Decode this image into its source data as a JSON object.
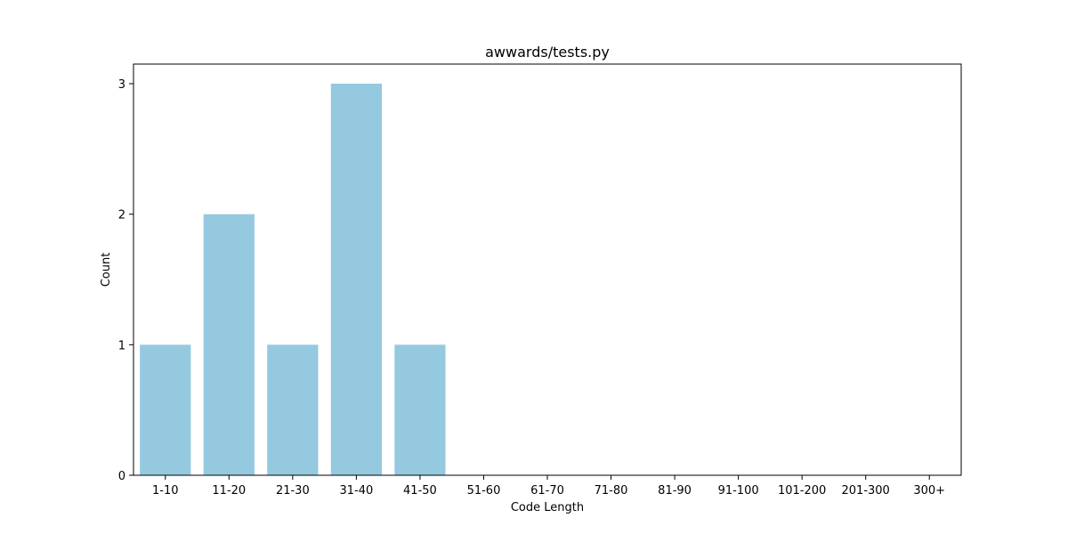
{
  "chart_data": {
    "type": "bar",
    "title": "awwards/tests.py",
    "xlabel": "Code Length",
    "ylabel": "Count",
    "categories": [
      "1-10",
      "11-20",
      "21-30",
      "31-40",
      "41-50",
      "51-60",
      "61-70",
      "71-80",
      "81-90",
      "91-100",
      "101-200",
      "201-300",
      "300+"
    ],
    "values": [
      1,
      2,
      1,
      3,
      1,
      0,
      0,
      0,
      0,
      0,
      0,
      0,
      0
    ],
    "ylim": [
      0,
      3.15
    ],
    "yticks": [
      0,
      1,
      2,
      3
    ],
    "grid": false,
    "legend": "none",
    "bar_color": "#94c9df",
    "axis_color": "#000000"
  }
}
